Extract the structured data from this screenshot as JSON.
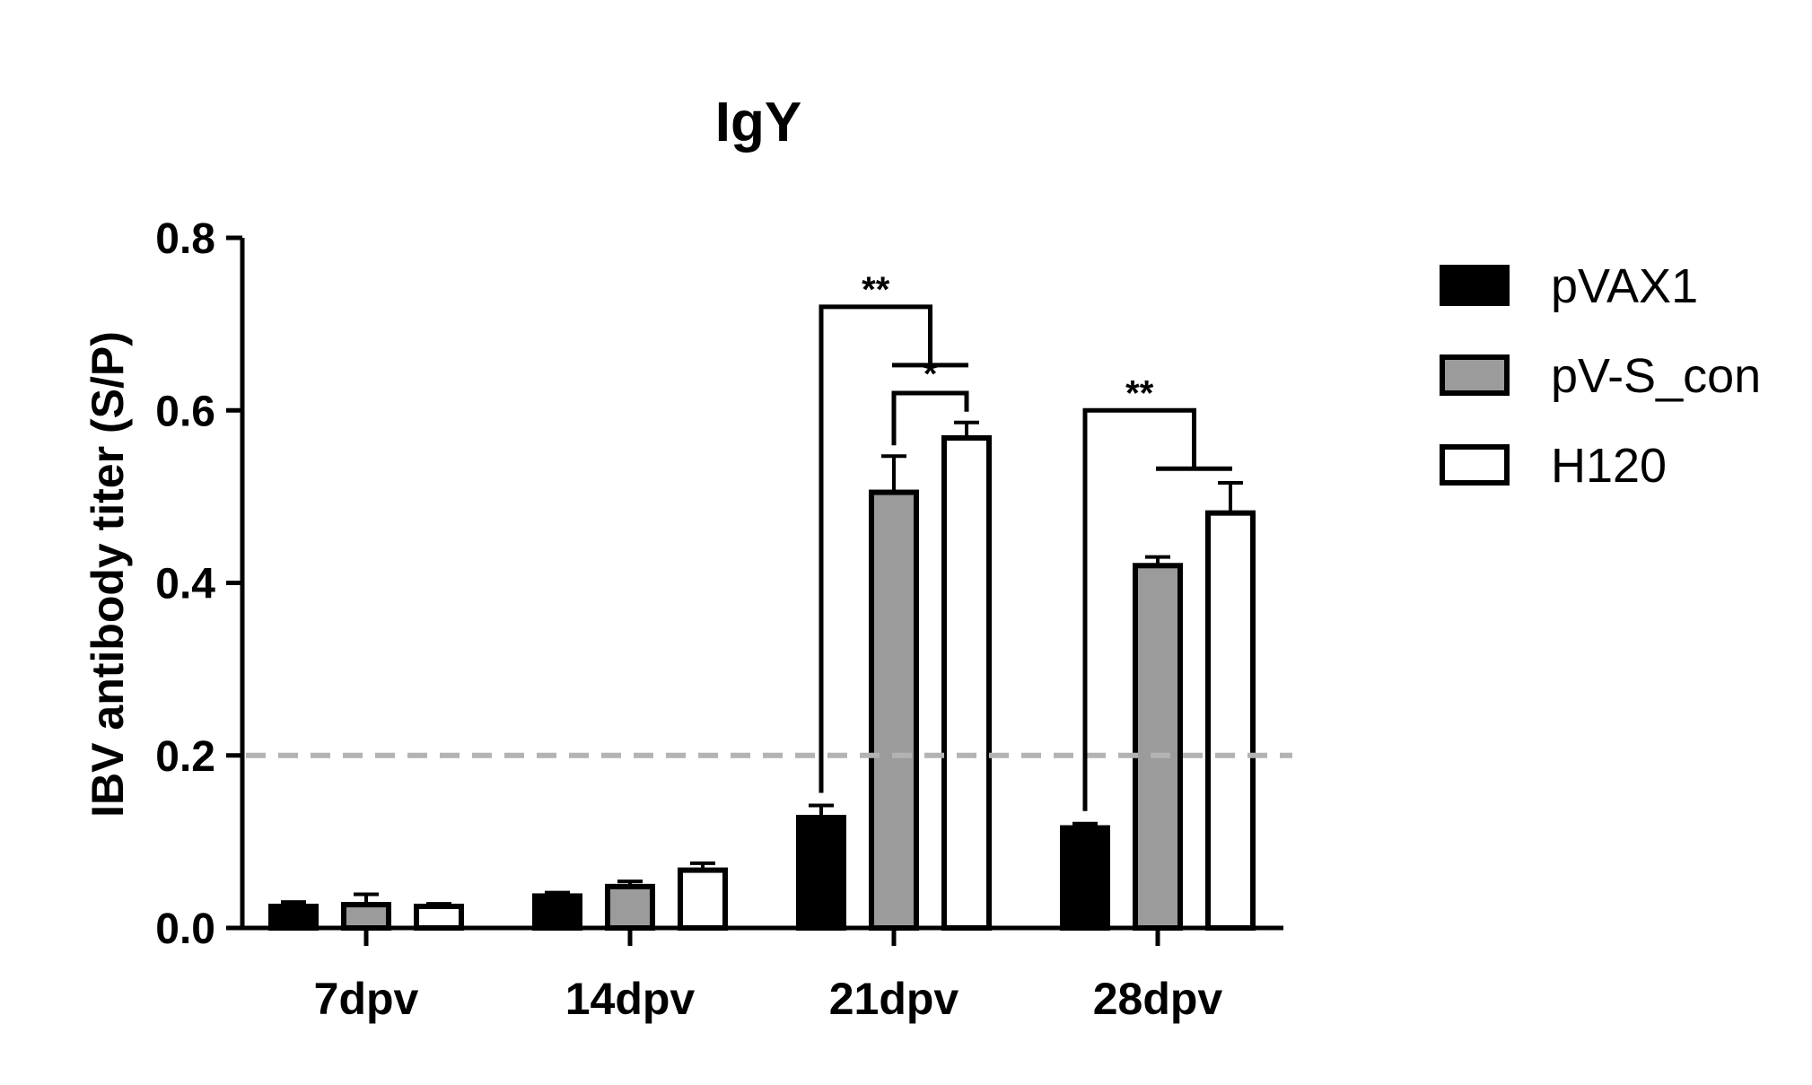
{
  "chart_data": {
    "type": "bar",
    "title": "IgY",
    "ylabel": "IBV antibody titer (S/P)",
    "xlabel": "",
    "ylim": [
      0,
      0.8
    ],
    "yticks": [
      "0.0",
      "0.2",
      "0.4",
      "0.6",
      "0.8"
    ],
    "categories": [
      "7dpv",
      "14dpv",
      "21dpv",
      "28dpv"
    ],
    "series": [
      {
        "name": "pVAX1",
        "color": "#000000",
        "values": [
          0.025,
          0.037,
          0.128,
          0.116
        ],
        "errors": [
          0.005,
          0.004,
          0.014,
          0.005
        ]
      },
      {
        "name": "pV-S_con",
        "color": "#9b9b9b",
        "values": [
          0.027,
          0.048,
          0.505,
          0.42
        ],
        "errors": [
          0.012,
          0.006,
          0.042,
          0.01
        ]
      },
      {
        "name": "H120",
        "color": "#ffffff",
        "values": [
          0.025,
          0.067,
          0.568,
          0.481
        ],
        "errors": [
          0.003,
          0.008,
          0.018,
          0.035
        ]
      }
    ],
    "reference_line": {
      "value": 0.2,
      "style": "dashed",
      "color": "#b3b3b3"
    },
    "significance": [
      {
        "label": "**",
        "category": "21dpv",
        "from": "pVAX1",
        "to": [
          "pV-S_con",
          "H120"
        ],
        "level": 0.72
      },
      {
        "label": "*",
        "category": "21dpv",
        "from": "pV-S_con",
        "to": [
          "H120"
        ],
        "level": 0.62
      },
      {
        "label": "**",
        "category": "28dpv",
        "from": "pVAX1",
        "to": [
          "pV-S_con",
          "H120"
        ],
        "level": 0.6
      }
    ],
    "legend_position": "right",
    "grid": false
  }
}
